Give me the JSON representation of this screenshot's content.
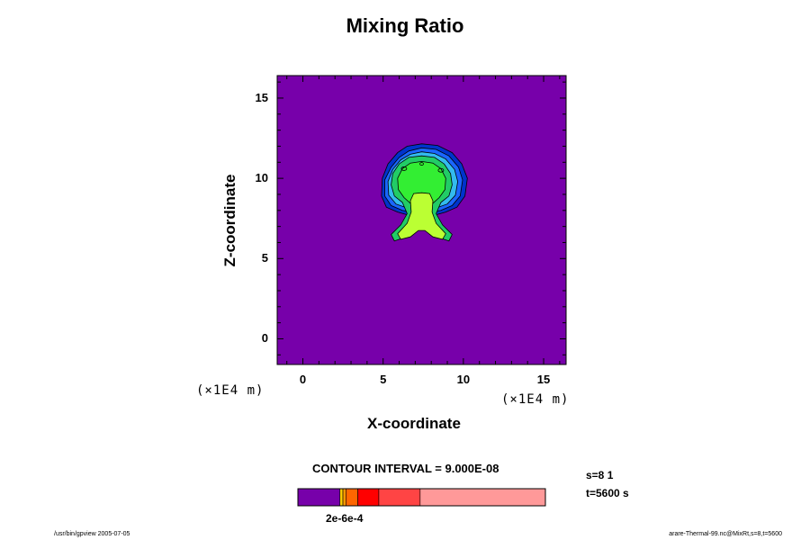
{
  "chart_data": {
    "type": "contour",
    "title": "Mixing Ratio",
    "xlabel": "X-coordinate",
    "ylabel": "Z-coordinate",
    "x_unit": "(×1E4 m)",
    "y_unit": "(×1E4 m)",
    "xlim": [
      -1.6,
      16.4
    ],
    "ylim": [
      -1.6,
      16.4
    ],
    "x_ticks": [
      0,
      5,
      10,
      15
    ],
    "y_ticks": [
      0,
      5,
      10,
      15
    ],
    "contour_interval": "CONTOUR INTERVAL = 9.000E-08",
    "background_value_color": "#7700aa",
    "bubble": {
      "outer_top": 12.1,
      "outer_bottom": 7.8,
      "outer_left": 5.0,
      "outer_right": 10.2,
      "stem_top": 9.1,
      "stem_bottom": 6.0,
      "stem_center_x": 7.4
    },
    "colorbar": {
      "label": "2e-6e-4",
      "colors": [
        "#7700aa",
        "#ffcc00",
        "#ff9900",
        "#ff6600",
        "#ff0000",
        "#ff4444",
        "#ff9999"
      ],
      "segments": [
        0.17,
        0.012,
        0.012,
        0.048,
        0.085,
        0.167,
        0.506
      ]
    }
  },
  "info": {
    "s": "s=8 1",
    "t": "t=5600 s"
  },
  "footer": {
    "left": "/usr/bin/gpview 2005-07-05",
    "right": "arare-Thermal-99.nc@MixRt,s=8,t=5600"
  },
  "colors": {
    "level_blue_dark": "#0033cc",
    "level_blue": "#1a66ff",
    "level_cyan": "#33bbee",
    "level_green_dark": "#22cc66",
    "level_green": "#33ee33",
    "level_yellowgreen": "#bbff33"
  }
}
